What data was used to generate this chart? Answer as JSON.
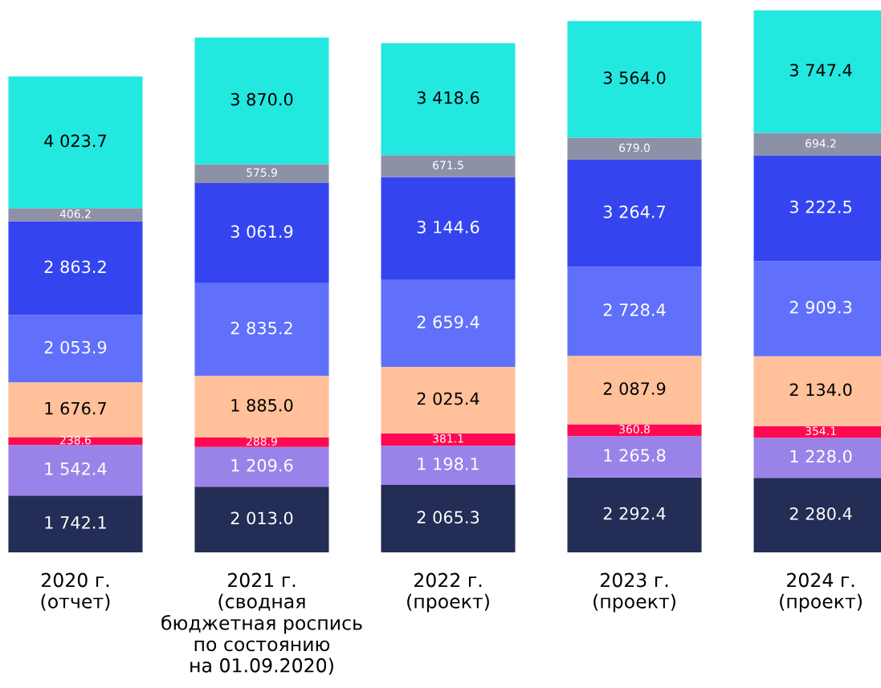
{
  "chart_data": {
    "type": "bar",
    "stacked": true,
    "legend": false,
    "grid": false,
    "categories": [
      "2020 г.\n(отчет)",
      "2021 г.\n(сводная\nбюджетная роспись\nпо состоянию\nна 01.09.2020)",
      "2022 г.\n(проект)",
      "2023 г.\n(проект)",
      "2024 г.\n(проект)"
    ],
    "series": [
      {
        "color": "#232d55",
        "values": [
          1742.1,
          2013.0,
          2065.3,
          2292.4,
          2280.4
        ],
        "value_labels": [
          "1 742.1",
          "2 013.0",
          "2 065.3",
          "2 292.4",
          "2 280.4"
        ]
      },
      {
        "color": "#9a83e8",
        "values": [
          1542.4,
          1209.6,
          1198.1,
          1265.8,
          1228.0
        ],
        "value_labels": [
          "1 542.4",
          "1 209.6",
          "1 198.1",
          "1 265.8",
          "1 228.0"
        ]
      },
      {
        "color": "#ff0a50",
        "values": [
          238.6,
          288.9,
          381.1,
          360.8,
          354.1
        ],
        "value_labels": [
          "238.6",
          "288.9",
          "381.1",
          "360.8",
          "354.1"
        ]
      },
      {
        "color": "#ffc09a",
        "values": [
          1676.7,
          1885.0,
          2025.4,
          2087.9,
          2134.0
        ],
        "value_labels": [
          "1 676.7",
          "1 885.0",
          "2 025.4",
          "2 087.9",
          "2 134.0"
        ]
      },
      {
        "color": "#6070fb",
        "values": [
          2053.9,
          2835.2,
          2659.4,
          2728.4,
          2909.3
        ],
        "value_labels": [
          "2 053.9",
          "2 835.2",
          "2 659.4",
          "2 728.4",
          "2 909.3"
        ]
      },
      {
        "color": "#3445f0",
        "values": [
          2863.2,
          3061.9,
          3144.6,
          3264.7,
          3222.5
        ],
        "value_labels": [
          "2 863.2",
          "3 061.9",
          "3 144.6",
          "3 264.7",
          "3 222.5"
        ]
      },
      {
        "color": "#8c91a8",
        "values": [
          406.2,
          575.9,
          671.5,
          679.0,
          694.2
        ],
        "value_labels": [
          "406.2",
          "575.9",
          "671.5",
          "679.0",
          "694.2"
        ]
      },
      {
        "color": "#22e8e0",
        "values": [
          4023.7,
          3870.0,
          3418.6,
          3564.0,
          3747.4
        ],
        "value_labels": [
          "4 023.7",
          "3 870.0",
          "3 418.6",
          "3 564.0",
          "3 747.4"
        ]
      }
    ]
  }
}
